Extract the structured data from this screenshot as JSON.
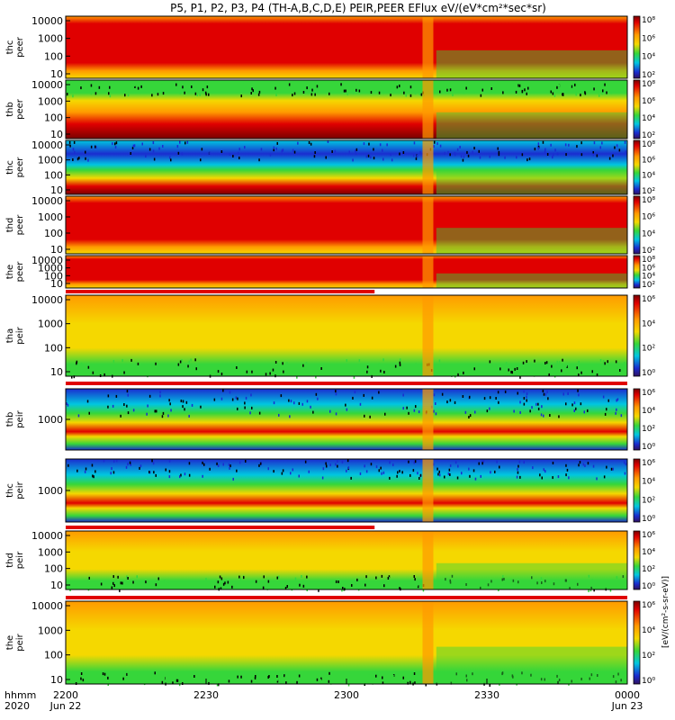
{
  "title": "P5, P1, P2, P3, P4 (TH-A,B,C,D,E) PEIR,PEER EFlux eV/(eV*cm²*sec*sr)",
  "colorbar_unit": "[eV/(cm²-s-sr-eV)]",
  "xaxis": {
    "row1_labels": [
      "hhmm",
      "2200",
      "2230",
      "2300",
      "2330",
      "0000"
    ],
    "row2_labels": [
      "2020",
      "Jun 22",
      "Jun 23"
    ]
  },
  "chart_data": {
    "type": "heatmap",
    "x_time_range": [
      "2020-06-22 22:00",
      "2020-06-23 00:00"
    ],
    "panels": [
      {
        "ylabel": [
          "thc",
          "peer"
        ],
        "yticks": [
          "10",
          "100",
          "1000",
          "10000"
        ],
        "colorbar_ticks": [
          "10²",
          "10⁴",
          "10⁶",
          "10⁸"
        ],
        "log_y": true
      },
      {
        "ylabel": [
          "thb",
          "peer"
        ],
        "yticks": [
          "10",
          "100",
          "1000",
          "10000"
        ],
        "colorbar_ticks": [
          "10²",
          "10⁴",
          "10⁶",
          "10⁸"
        ],
        "log_y": true
      },
      {
        "ylabel": [
          "thc",
          "peer"
        ],
        "yticks": [
          "10",
          "100",
          "1000",
          "10000"
        ],
        "colorbar_ticks": [
          "10²",
          "10⁴",
          "10⁶",
          "10⁸"
        ],
        "log_y": true
      },
      {
        "ylabel": [
          "thd",
          "peer"
        ],
        "yticks": [
          "10",
          "100",
          "1000",
          "10000"
        ],
        "colorbar_ticks": [
          "10²",
          "10⁴",
          "10⁶",
          "10⁸"
        ],
        "log_y": true
      },
      {
        "ylabel": [
          "the",
          "peer"
        ],
        "yticks": [
          "10",
          "100",
          "1000",
          "10000"
        ],
        "colorbar_ticks": [
          "10²",
          "10⁴",
          "10⁶",
          "10⁸"
        ],
        "log_y": true
      },
      {
        "ylabel": [
          "tha",
          "peir"
        ],
        "yticks": [
          "10",
          "100",
          "1000",
          "10000"
        ],
        "colorbar_ticks": [
          "10⁰",
          "10²",
          "10⁴",
          "10⁶"
        ],
        "log_y": true
      },
      {
        "ylabel": [
          "thb",
          "peir"
        ],
        "yticks": [
          "1000"
        ],
        "colorbar_ticks": [
          "10⁰",
          "10²",
          "10⁴",
          "10⁶"
        ],
        "log_y": true
      },
      {
        "ylabel": [
          "thc",
          "peir"
        ],
        "yticks": [
          "1000"
        ],
        "colorbar_ticks": [
          "10⁰",
          "10²",
          "10⁴",
          "10⁶"
        ],
        "log_y": true
      },
      {
        "ylabel": [
          "thd",
          "peir"
        ],
        "yticks": [
          "10",
          "100",
          "1000",
          "10000"
        ],
        "colorbar_ticks": [
          "10⁰",
          "10²",
          "10⁴",
          "10⁶"
        ],
        "log_y": true
      },
      {
        "ylabel": [
          "the",
          "peir"
        ],
        "yticks": [
          "10",
          "100",
          "1000",
          "10000"
        ],
        "colorbar_ticks": [
          "10⁰",
          "10²",
          "10⁴",
          "10⁶"
        ],
        "log_y": true
      }
    ]
  },
  "colors": {
    "red": "#e00000",
    "orange": "#ff9a00",
    "yellow": "#f5d800",
    "green": "#36d63a",
    "cyan": "#00c6e0",
    "blue": "#1a2cd0",
    "darkred": "#7a0000",
    "bar_red": "#e00000"
  }
}
